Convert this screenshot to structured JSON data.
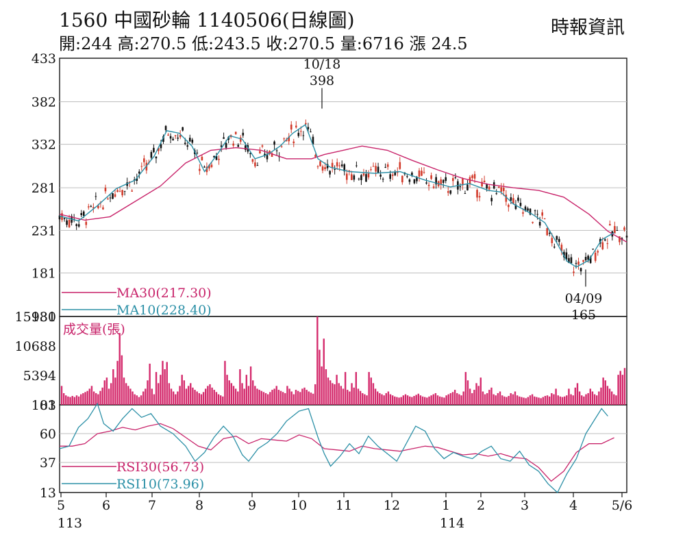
{
  "header": {
    "title": "1560  中國砂輪 1140506(日線圖)",
    "ohlc": "開:244 高:270.5 低:243.5 收:270.5 量:6716 漲 24.5",
    "source": "時報資訊"
  },
  "chart_data": [
    {
      "type": "candlestick",
      "panel": "price",
      "ylim": [
        130,
        433
      ],
      "yticks": [
        "433",
        "382",
        "332",
        "281",
        "231",
        "181",
        "130"
      ],
      "grid": true,
      "annotations": [
        {
          "date": "10/18",
          "label_date": "10/18",
          "label_value": "398",
          "value": 398
        },
        {
          "date": "04/09",
          "label_date": "04/09",
          "label_value": "165",
          "value": 165
        }
      ],
      "legend": [
        {
          "name": "MA30(217.30)",
          "color": "#c8236a"
        },
        {
          "name": "MA10(228.40)",
          "color": "#2a8fa6"
        }
      ],
      "series": [
        {
          "name": "MA30",
          "color": "#c8236a",
          "values": [
            [
              0,
              250
            ],
            [
              40,
              243
            ],
            [
              80,
              247
            ],
            [
              120,
              265
            ],
            [
              160,
              283
            ],
            [
              200,
              310
            ],
            [
              240,
              325
            ],
            [
              280,
              328
            ],
            [
              320,
              325
            ],
            [
              360,
              315
            ],
            [
              400,
              315
            ],
            [
              420,
              320
            ],
            [
              450,
              325
            ],
            [
              480,
              330
            ],
            [
              520,
              325
            ],
            [
              560,
              313
            ],
            [
              600,
              302
            ],
            [
              640,
              292
            ],
            [
              680,
              285
            ],
            [
              720,
              281
            ],
            [
              760,
              278
            ],
            [
              800,
              270
            ],
            [
              840,
              250
            ],
            [
              870,
              230
            ],
            [
              900,
              217.3
            ]
          ]
        },
        {
          "name": "MA10",
          "color": "#2a8fa6",
          "values": [
            [
              0,
              248
            ],
            [
              30,
              242
            ],
            [
              60,
              260
            ],
            [
              90,
              280
            ],
            [
              120,
              290
            ],
            [
              150,
              318
            ],
            [
              170,
              348
            ],
            [
              190,
              345
            ],
            [
              210,
              330
            ],
            [
              230,
              300
            ],
            [
              250,
              320
            ],
            [
              270,
              342
            ],
            [
              290,
              338
            ],
            [
              310,
              315
            ],
            [
              330,
              320
            ],
            [
              350,
              330
            ],
            [
              370,
              345
            ],
            [
              390,
              355
            ],
            [
              410,
              315
            ],
            [
              430,
              305
            ],
            [
              460,
              300
            ],
            [
              500,
              298
            ],
            [
              540,
              300
            ],
            [
              580,
              290
            ],
            [
              620,
              282
            ],
            [
              650,
              286
            ],
            [
              680,
              278
            ],
            [
              700,
              276
            ],
            [
              720,
              262
            ],
            [
              750,
              250
            ],
            [
              770,
              240
            ],
            [
              790,
              215
            ],
            [
              805,
              195
            ],
            [
              820,
              188
            ],
            [
              840,
              196
            ],
            [
              860,
              220
            ],
            [
              880,
              228.4
            ]
          ]
        }
      ]
    },
    {
      "type": "bar",
      "panel": "volume",
      "title": "成交量(張)",
      "ylim": [
        101,
        15981
      ],
      "yticks": [
        "15981",
        "10688",
        "5394",
        "101"
      ],
      "values": [
        3500,
        2200,
        1800,
        1600,
        1500,
        1700,
        1500,
        1800,
        1600,
        2000,
        2200,
        2400,
        2600,
        3000,
        3500,
        2500,
        2200,
        2000,
        2600,
        3200,
        4500,
        5000,
        3000,
        4000,
        6500,
        5000,
        8000,
        13000,
        9000,
        5000,
        4000,
        3500,
        3000,
        2500,
        2000,
        1800,
        1500,
        1800,
        2500,
        3000,
        4500,
        7500,
        3000,
        2000,
        6000,
        4000,
        5500,
        8000,
        6500,
        7800,
        4000,
        3000,
        2500,
        2000,
        2500,
        3500,
        5500,
        4500,
        3000,
        3500,
        4000,
        3200,
        2800,
        2500,
        2200,
        2000,
        2400,
        3000,
        3500,
        3800,
        3200,
        2800,
        2400,
        2000,
        1800,
        1600,
        8000,
        5500,
        4500,
        4000,
        3500,
        3000,
        2500,
        6500,
        4000,
        3000,
        5500,
        3500,
        7000,
        4500,
        3500,
        3000,
        2800,
        2600,
        2400,
        2200,
        2000,
        2400,
        2800,
        3000,
        3500,
        2800,
        2600,
        2400,
        2200,
        3500,
        3000,
        2500,
        2000,
        2800,
        2600,
        2400,
        3000,
        3200,
        2800,
        2500,
        2300,
        2100,
        3800,
        16000,
        10000,
        7000,
        12000,
        6500,
        5000,
        4500,
        4000,
        3800,
        5500,
        4000,
        3500,
        3000,
        6000,
        2800,
        2500,
        4000,
        3200,
        6000,
        3000,
        2600,
        2200,
        2000,
        1800,
        6000,
        5000,
        4000,
        3000,
        2500,
        2200,
        2000,
        1800,
        2200,
        2500,
        2000,
        1800,
        1600,
        1500,
        1400,
        1500,
        1800,
        2000,
        1800,
        1600,
        1500,
        1700,
        1900,
        2100,
        1800,
        1600,
        1500,
        1400,
        1600,
        1800,
        2000,
        2200,
        1800,
        1600,
        1500,
        1400,
        1800,
        2000,
        2200,
        2400,
        2800,
        2200,
        2000,
        1800,
        2500,
        6000,
        4500,
        3000,
        2200,
        2800,
        4000,
        3500,
        5000,
        2500,
        2000,
        2200,
        2800,
        3200,
        2000,
        1800,
        2200,
        2500,
        1800,
        1600,
        1500,
        1700,
        2200,
        2000,
        2500,
        1800,
        1600,
        1500,
        1400,
        1300,
        1500,
        1800,
        2000,
        1600,
        1500,
        1400,
        1300,
        1500,
        1700,
        1800,
        1600,
        2200,
        2000,
        3000,
        1800,
        1600,
        1500,
        1600,
        1800,
        3000,
        2000,
        1800,
        3200,
        4000,
        2500,
        1800,
        1600,
        2000,
        2200,
        3000,
        2500,
        2000,
        1800,
        2500,
        3200,
        5000,
        4500,
        3500,
        3000,
        2500,
        2000,
        1800,
        5500,
        6200,
        5500,
        6716
      ]
    },
    {
      "type": "line",
      "panel": "rsi",
      "ylim": [
        13,
        83
      ],
      "yticks": [
        "83",
        "60",
        "37",
        "13"
      ],
      "legend": [
        {
          "name": "RSI30(56.73)",
          "color": "#c8236a"
        },
        {
          "name": "RSI10(73.96)",
          "color": "#2a8fa6"
        }
      ],
      "series": [
        {
          "name": "RSI30",
          "color": "#c8236a",
          "values": [
            [
              0,
              50
            ],
            [
              20,
              50
            ],
            [
              40,
              52
            ],
            [
              60,
              60
            ],
            [
              80,
              62
            ],
            [
              100,
              65
            ],
            [
              120,
              63
            ],
            [
              140,
              66
            ],
            [
              160,
              68
            ],
            [
              180,
              64
            ],
            [
              200,
              57
            ],
            [
              220,
              50
            ],
            [
              240,
              47
            ],
            [
              260,
              56
            ],
            [
              280,
              58
            ],
            [
              300,
              52
            ],
            [
              320,
              56
            ],
            [
              340,
              55
            ],
            [
              360,
              54
            ],
            [
              380,
              59
            ],
            [
              400,
              56
            ],
            [
              420,
              48
            ],
            [
              440,
              47
            ],
            [
              460,
              46
            ],
            [
              480,
              50
            ],
            [
              500,
              48
            ],
            [
              520,
              47
            ],
            [
              540,
              46
            ],
            [
              560,
              48
            ],
            [
              580,
              50
            ],
            [
              600,
              49
            ],
            [
              620,
              46
            ],
            [
              640,
              43
            ],
            [
              660,
              44
            ],
            [
              680,
              42
            ],
            [
              700,
              44
            ],
            [
              720,
              41
            ],
            [
              740,
              40
            ],
            [
              760,
              33
            ],
            [
              780,
              22
            ],
            [
              800,
              30
            ],
            [
              820,
              45
            ],
            [
              840,
              52
            ],
            [
              860,
              52
            ],
            [
              880,
              56.73
            ]
          ]
        },
        {
          "name": "RSI10",
          "color": "#2a8fa6",
          "values": [
            [
              0,
              48
            ],
            [
              15,
              50
            ],
            [
              30,
              65
            ],
            [
              45,
              72
            ],
            [
              60,
              84
            ],
            [
              70,
              68
            ],
            [
              85,
              62
            ],
            [
              100,
              72
            ],
            [
              115,
              80
            ],
            [
              130,
              73
            ],
            [
              145,
              76
            ],
            [
              160,
              66
            ],
            [
              180,
              60
            ],
            [
              200,
              50
            ],
            [
              215,
              38
            ],
            [
              230,
              45
            ],
            [
              245,
              57
            ],
            [
              260,
              66
            ],
            [
              275,
              58
            ],
            [
              290,
              43
            ],
            [
              300,
              38
            ],
            [
              315,
              48
            ],
            [
              330,
              53
            ],
            [
              345,
              60
            ],
            [
              360,
              70
            ],
            [
              380,
              78
            ],
            [
              395,
              80
            ],
            [
              410,
              57
            ],
            [
              420,
              44
            ],
            [
              430,
              34
            ],
            [
              445,
              42
            ],
            [
              460,
              52
            ],
            [
              475,
              44
            ],
            [
              490,
              58
            ],
            [
              505,
              50
            ],
            [
              520,
              44
            ],
            [
              535,
              38
            ],
            [
              550,
              52
            ],
            [
              565,
              66
            ],
            [
              580,
              62
            ],
            [
              595,
              48
            ],
            [
              610,
              40
            ],
            [
              625,
              45
            ],
            [
              640,
              42
            ],
            [
              655,
              40
            ],
            [
              670,
              46
            ],
            [
              685,
              50
            ],
            [
              700,
              40
            ],
            [
              715,
              38
            ],
            [
              730,
              46
            ],
            [
              745,
              35
            ],
            [
              760,
              30
            ],
            [
              775,
              20
            ],
            [
              790,
              13
            ],
            [
              805,
              28
            ],
            [
              820,
              40
            ],
            [
              835,
              60
            ],
            [
              850,
              72
            ],
            [
              860,
              80
            ],
            [
              870,
              73.96
            ]
          ]
        }
      ]
    }
  ],
  "x_axis": {
    "labels": [
      "5",
      "6",
      "7",
      "8",
      "9",
      "10",
      "11",
      "12",
      "1",
      "2",
      "3",
      "4",
      "5/6"
    ],
    "year_labels": [
      "113",
      "114"
    ]
  }
}
